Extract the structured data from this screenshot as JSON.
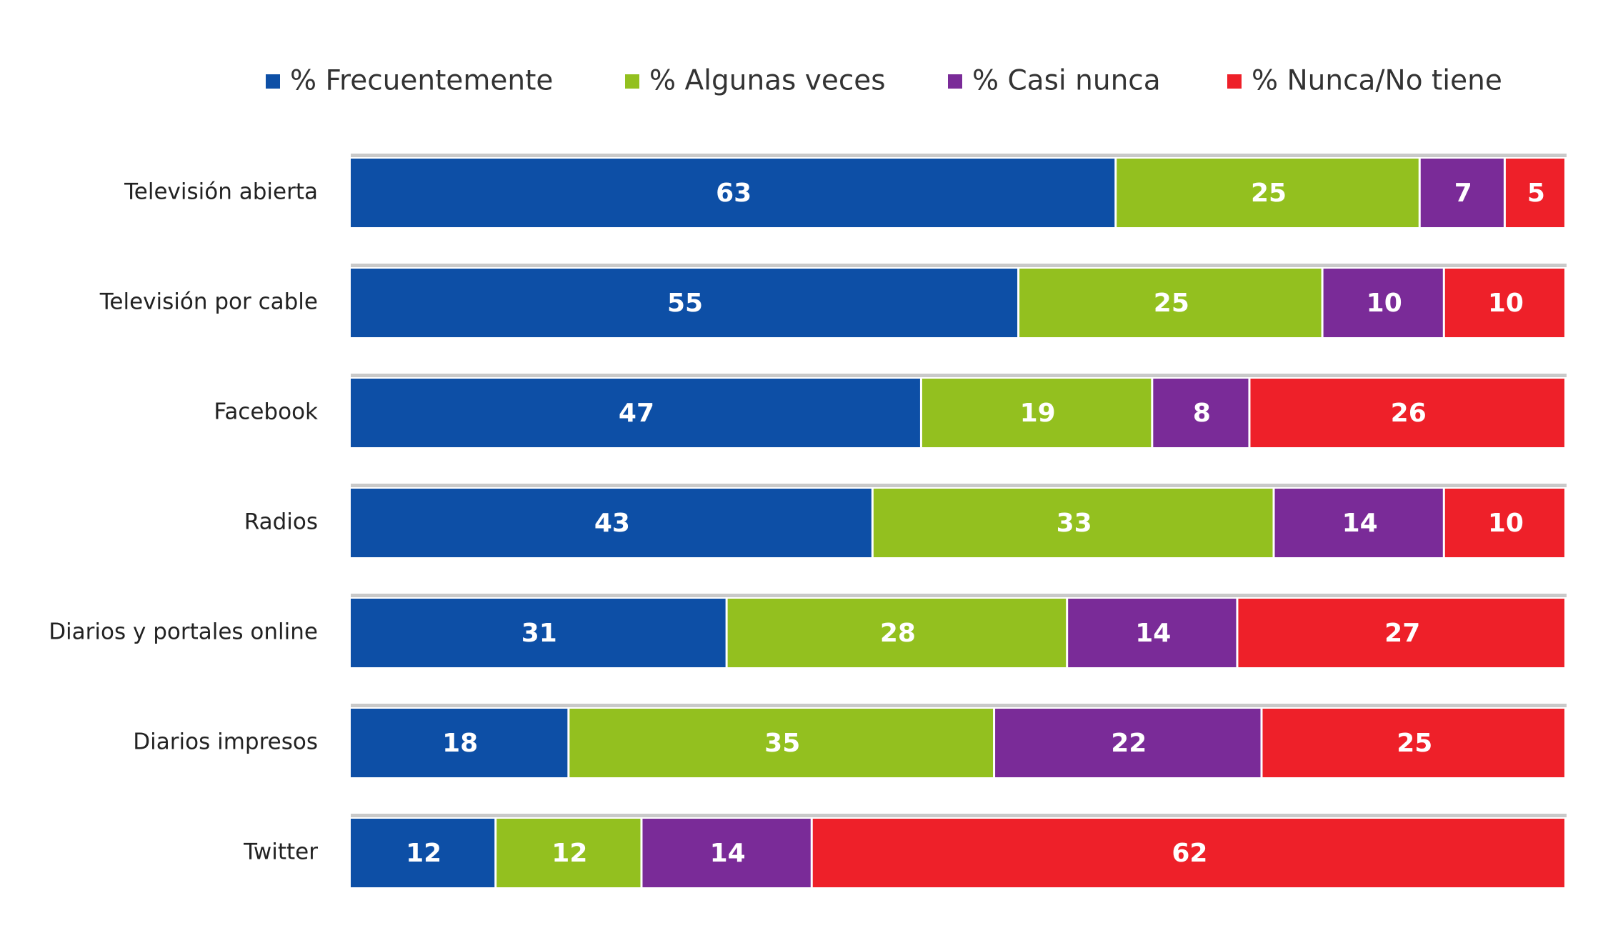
{
  "chart_data": {
    "type": "stacked_bar_horizontal",
    "categories": [
      "Televisión abierta",
      "Televisión por cable",
      "Facebook",
      "Radios",
      "Diarios y portales online",
      "Diarios impresos",
      "Twitter"
    ],
    "series": [
      {
        "name": "% Frecuentemente",
        "color": "#0d4fa6",
        "values": [
          63,
          55,
          47,
          43,
          31,
          18,
          12
        ]
      },
      {
        "name": "% Algunas veces",
        "color": "#93c01f",
        "values": [
          25,
          25,
          19,
          33,
          28,
          35,
          12
        ]
      },
      {
        "name": "% Casi nunca",
        "color": "#7a2b98",
        "values": [
          7,
          10,
          8,
          14,
          14,
          22,
          14
        ]
      },
      {
        "name": "% Nunca/No tiene",
        "color": "#ee2029",
        "values": [
          5,
          10,
          26,
          10,
          27,
          25,
          62
        ]
      }
    ],
    "xlim": [
      0,
      100
    ],
    "legend": "top"
  }
}
